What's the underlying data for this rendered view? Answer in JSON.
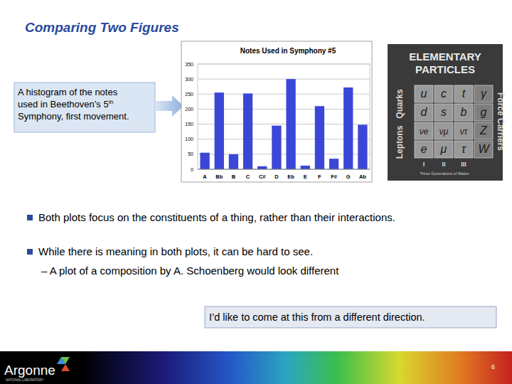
{
  "chart_data": {
    "type": "bar",
    "title": "Notes Used in Symphony #5",
    "categories": [
      "A",
      "Bb",
      "B",
      "C",
      "C#",
      "D",
      "Eb",
      "E",
      "F",
      "F#",
      "G",
      "Ab"
    ],
    "values": [
      55,
      255,
      50,
      252,
      10,
      145,
      300,
      12,
      210,
      35,
      272,
      148
    ],
    "color": "#3a47d6",
    "ylim": [
      0,
      350
    ],
    "yticks": [
      0,
      50,
      100,
      150,
      200,
      250,
      300,
      350
    ],
    "grid": true
  },
  "slide": {
    "title": "Comparing Two Figures",
    "callout": {
      "lines": [
        {
          "text": "A histogram of the notes"
        },
        {
          "text": "used in Beethoven’s 5",
          "sup": "th"
        },
        {
          "text": "Symphony, first movement."
        }
      ]
    },
    "particles": {
      "title_lines": [
        "ELEMENTARY",
        "PARTICLES"
      ],
      "groups": [
        "Quarks",
        "Leptons",
        "Force Carriers"
      ],
      "cells": [
        [
          "u",
          "c",
          "t",
          "γ"
        ],
        [
          "d",
          "s",
          "b",
          "g"
        ],
        [
          "νe",
          "νμ",
          "ντ",
          "Z"
        ],
        [
          "e",
          "μ",
          "τ",
          "W"
        ]
      ],
      "generations": [
        "I",
        "II",
        "III"
      ],
      "caption": "Three Generations of Matter"
    },
    "bullets": [
      {
        "text": "Both plots focus on the constituents of a thing, rather than their interactions."
      },
      {
        "text": "While there is meaning in both plots, it can be hard to see.",
        "sub": [
          "– A plot of a composition by A. Schoenberg would look different"
        ]
      }
    ],
    "highlight": "I’d like to come at this from a different direction.",
    "footer": {
      "logo": "Argonne",
      "logo_sub": "NATIONAL LABORATORY",
      "page": "6"
    }
  }
}
